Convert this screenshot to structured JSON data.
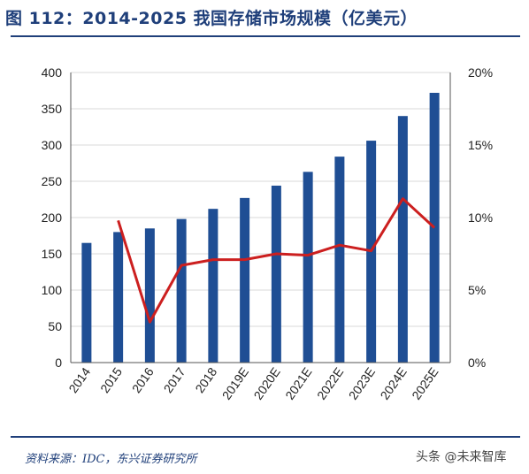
{
  "header": {
    "title": "图 112：2014-2025 我国存储市场规模（亿美元）"
  },
  "footer": {
    "source": "资料来源：IDC，东兴证券研究所",
    "watermark": "头条 @未来智库"
  },
  "colors": {
    "bar": "#1f4e94",
    "line": "#cc1f1f",
    "rule": "#1f3f7a",
    "axis_text": "#222222"
  },
  "chart_data": {
    "type": "bar",
    "categories": [
      "2014",
      "2015",
      "2016",
      "2017",
      "2018",
      "2019E",
      "2020E",
      "2021E",
      "2022E",
      "2023E",
      "2024E",
      "2025E"
    ],
    "series": [
      {
        "values": [
          165,
          180,
          185,
          198,
          212,
          227,
          244,
          263,
          284,
          306,
          340,
          372
        ]
      },
      {
        "type": "line",
        "axis": "right",
        "values": [
          null,
          9.8,
          2.8,
          6.7,
          7.1,
          7.1,
          7.5,
          7.4,
          8.1,
          7.7,
          11.3,
          9.3
        ]
      }
    ],
    "ylim": [
      0,
      400
    ],
    "yticks": [
      0,
      50,
      100,
      150,
      200,
      250,
      300,
      350,
      400
    ],
    "y2lim": [
      0,
      20
    ],
    "y2ticks": [
      "0%",
      "5%",
      "10%",
      "15%",
      "20%"
    ],
    "grid": true
  }
}
